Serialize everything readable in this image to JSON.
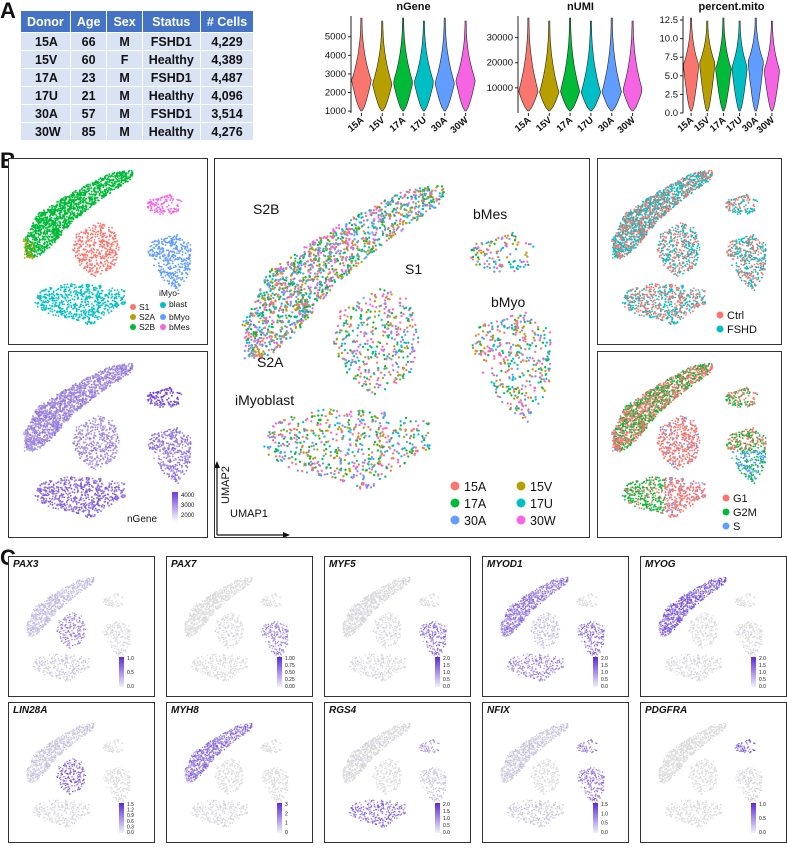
{
  "panels": {
    "a": "A",
    "b": "B",
    "c": "C"
  },
  "table": {
    "headers": [
      "Donor",
      "Age",
      "Sex",
      "Status",
      "# Cells"
    ],
    "rows": [
      [
        "15A",
        "66",
        "M",
        "FSHD1",
        "4,229"
      ],
      [
        "15V",
        "60",
        "F",
        "Healthy",
        "4,389"
      ],
      [
        "17A",
        "23",
        "M",
        "FSHD1",
        "4,487"
      ],
      [
        "17U",
        "21",
        "M",
        "Healthy",
        "4,096"
      ],
      [
        "30A",
        "57",
        "M",
        "FSHD1",
        "3,514"
      ],
      [
        "30W",
        "85",
        "M",
        "Healthy",
        "4,276"
      ]
    ]
  },
  "colors": {
    "15A": "#f8766d",
    "15V": "#b79f00",
    "17A": "#00ba38",
    "17U": "#00bfc4",
    "30A": "#619cff",
    "30W": "#f564e3",
    "S1": "#f8766d",
    "S2A": "#b79f00",
    "S2B": "#00ba38",
    "iMyoblast": "#00bfc4",
    "bMyo": "#619cff",
    "bMes": "#f564e3",
    "Ctrl": "#f8766d",
    "FSHD": "#00bfc4",
    "G1": "#f8766d",
    "G2M": "#00ba38",
    "S": "#619cff",
    "feature": "#6a3bd9"
  },
  "chart_data": [
    {
      "type": "violin",
      "title": "nGene",
      "categories": [
        "15A",
        "15V",
        "17A",
        "17U",
        "30A",
        "30W"
      ],
      "ylim": [
        900,
        5900
      ],
      "yticks": [
        "1000",
        "2000",
        "3000",
        "4000",
        "5000"
      ],
      "medians": [
        2700,
        2500,
        2600,
        2600,
        2550,
        2700
      ]
    },
    {
      "type": "violin",
      "title": "nUMI",
      "categories": [
        "15A",
        "15V",
        "17A",
        "17U",
        "30A",
        "30W"
      ],
      "ylim": [
        0,
        37000
      ],
      "yticks": [
        "10000",
        "20000",
        "30000"
      ],
      "medians": [
        9000,
        8500,
        9000,
        8500,
        8800,
        9500
      ]
    },
    {
      "type": "violin",
      "title": "percent.mito",
      "categories": [
        "15A",
        "15V",
        "17A",
        "17U",
        "30A",
        "30W"
      ],
      "ylim": [
        0,
        12.5
      ],
      "yticks": [
        "0.0",
        "2.5",
        "5.0",
        "7.5",
        "10.0",
        "12.5"
      ],
      "medians": [
        6.5,
        6.8,
        6.0,
        6.2,
        7.0,
        5.8
      ]
    }
  ],
  "umap": {
    "labels": {
      "S1": "S1",
      "S2A": "S2A",
      "S2B": "S2B",
      "bMes": "bMes",
      "bMyo": "bMyo",
      "iMyoblast": "iMyoblast"
    },
    "axis_x": "UMAP1",
    "axis_y": "UMAP2",
    "donor_legend": [
      "15A",
      "15V",
      "17A",
      "17U",
      "30A",
      "30W"
    ],
    "cluster_legend": [
      "S1",
      "S2A",
      "S2B",
      "iMyo-\nblast",
      "bMyo",
      "bMes"
    ],
    "status_legend": [
      "Ctrl",
      "FSHD"
    ],
    "phase_legend": [
      "G1",
      "G2M",
      "S"
    ],
    "ngene_label": "nGene",
    "ngene_ticks": [
      "4000",
      "3000",
      "2000"
    ]
  },
  "genes": [
    {
      "name": "PAX3",
      "ticks": [
        "1.0",
        "0.5",
        "0.0"
      ]
    },
    {
      "name": "PAX7",
      "ticks": [
        "1.00",
        "0.75",
        "0.50",
        "0.25",
        "0.00"
      ]
    },
    {
      "name": "MYF5",
      "ticks": [
        "2.0",
        "1.5",
        "1.0",
        "0.5",
        "0.0"
      ]
    },
    {
      "name": "MYOD1",
      "ticks": [
        "2.0",
        "1.5",
        "1.0",
        "0.5",
        "0.0"
      ]
    },
    {
      "name": "MYOG",
      "ticks": [
        "2.0",
        "1.5",
        "1.0",
        "0.5",
        "0.0"
      ]
    },
    {
      "name": "LIN28A",
      "ticks": [
        "1.5",
        "1.2",
        "0.9",
        "0.6",
        "0.3",
        "0.0"
      ]
    },
    {
      "name": "MYH8",
      "ticks": [
        "3",
        "2",
        "1",
        "0"
      ]
    },
    {
      "name": "RGS4",
      "ticks": [
        "2.0",
        "1.5",
        "1.0",
        "0.5",
        "0.0"
      ]
    },
    {
      "name": "NFIX",
      "ticks": [
        "1.5",
        "1.0",
        "0.5",
        "0.0"
      ]
    },
    {
      "name": "PDGFRA",
      "ticks": [
        "1.0",
        "0.5",
        "0.0"
      ]
    }
  ]
}
